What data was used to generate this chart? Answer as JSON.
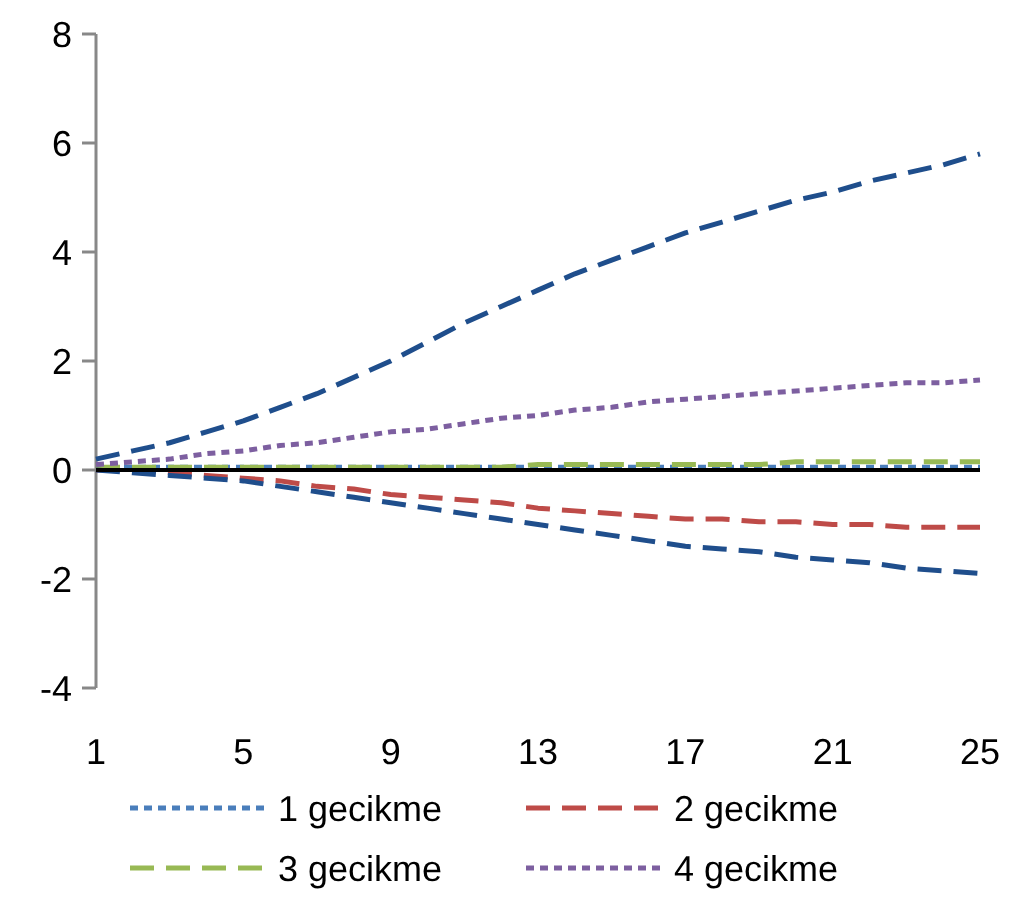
{
  "chart_data": {
    "type": "line",
    "x": [
      1,
      2,
      3,
      4,
      5,
      6,
      7,
      8,
      9,
      10,
      11,
      12,
      13,
      14,
      15,
      16,
      17,
      18,
      19,
      20,
      21,
      22,
      23,
      24,
      25
    ],
    "series": [
      {
        "name": "1 gecikme",
        "color": "#4a7ebb",
        "line_style": "dotted",
        "values": [
          0.05,
          0.05,
          0.05,
          0.05,
          0.05,
          0.05,
          0.05,
          0.05,
          0.05,
          0.05,
          0.05,
          0.05,
          0.05,
          0.05,
          0.05,
          0.05,
          0.05,
          0.05,
          0.05,
          0.05,
          0.05,
          0.05,
          0.05,
          0.05,
          0.05
        ]
      },
      {
        "name": "2 gecikme",
        "color": "#be4b48",
        "line_style": "dashed",
        "values": [
          0,
          0,
          -0.05,
          -0.1,
          -0.15,
          -0.2,
          -0.3,
          -0.35,
          -0.45,
          -0.5,
          -0.55,
          -0.6,
          -0.7,
          -0.75,
          -0.8,
          -0.85,
          -0.9,
          -0.9,
          -0.95,
          -0.95,
          -1.0,
          -1.0,
          -1.05,
          -1.05,
          -1.05
        ]
      },
      {
        "name": "3 gecikme",
        "color": "#98b954",
        "line_style": "dashed",
        "values": [
          0.05,
          0.05,
          0.05,
          0.05,
          0.05,
          0.05,
          0.05,
          0.05,
          0.05,
          0.05,
          0.05,
          0.05,
          0.1,
          0.1,
          0.1,
          0.1,
          0.1,
          0.1,
          0.1,
          0.15,
          0.15,
          0.15,
          0.15,
          0.15,
          0.15
        ]
      },
      {
        "name": "4 gecikme",
        "color": "#7d5fa0",
        "line_style": "dotted",
        "values": [
          0.1,
          0.15,
          0.2,
          0.3,
          0.35,
          0.45,
          0.5,
          0.6,
          0.7,
          0.75,
          0.85,
          0.95,
          1.0,
          1.1,
          1.15,
          1.25,
          1.3,
          1.35,
          1.4,
          1.45,
          1.5,
          1.55,
          1.6,
          1.6,
          1.65
        ]
      },
      {
        "color": "#1f4e8c",
        "line_style": "dashed",
        "values": [
          0.2,
          0.35,
          0.5,
          0.7,
          0.9,
          1.15,
          1.4,
          1.7,
          2.0,
          2.35,
          2.7,
          3.0,
          3.3,
          3.6,
          3.85,
          4.1,
          4.35,
          4.55,
          4.75,
          4.95,
          5.1,
          5.3,
          5.45,
          5.6,
          5.8
        ]
      },
      {
        "color": "#1f4e8c",
        "line_style": "dashed",
        "values": [
          0,
          -0.05,
          -0.1,
          -0.15,
          -0.2,
          -0.3,
          -0.4,
          -0.5,
          -0.6,
          -0.7,
          -0.8,
          -0.9,
          -1.0,
          -1.1,
          -1.2,
          -1.3,
          -1.4,
          -1.45,
          -1.5,
          -1.6,
          -1.65,
          -1.7,
          -1.8,
          -1.85,
          -1.9
        ]
      }
    ],
    "xlim": [
      1,
      25
    ],
    "xticks": [
      1,
      5,
      9,
      13,
      17,
      21,
      25
    ],
    "ylim": [
      -4,
      8
    ],
    "yticks": [
      -4,
      -2,
      0,
      2,
      4,
      6,
      8
    ],
    "ref_lines": [
      {
        "axis": "y",
        "value": 0,
        "color": "#000000"
      }
    ],
    "grid": false,
    "legend": "bottom"
  }
}
